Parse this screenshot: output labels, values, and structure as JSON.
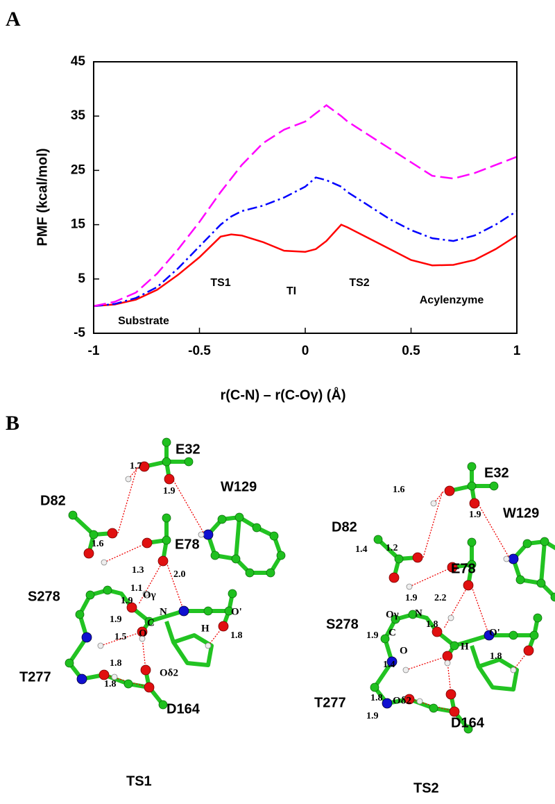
{
  "panel_labels": [
    "A",
    "B"
  ],
  "chart_data": {
    "type": "line",
    "ylabel": "PMF (kcal/mol)",
    "xlabel": "r(C-N) – r(C-Oγ) (Å)",
    "x": [
      -1,
      -0.9,
      -0.8,
      -0.7,
      -0.6,
      -0.5,
      -0.4,
      -0.35,
      -0.3,
      -0.2,
      -0.1,
      0,
      0.05,
      0.1,
      0.17,
      0.2,
      0.3,
      0.4,
      0.5,
      0.6,
      0.7,
      0.8,
      0.9,
      1
    ],
    "series": [
      {
        "color": "#ff0000",
        "line_style": "solid",
        "values": [
          0,
          0.3,
          1.2,
          3,
          5.8,
          9,
          12.8,
          13.2,
          13,
          11.8,
          10.2,
          10,
          10.5,
          12,
          15,
          14.5,
          12.5,
          10.5,
          8.5,
          7.5,
          7.6,
          8.5,
          10.5,
          13
        ]
      },
      {
        "color": "#0000ff",
        "line_style": "dashdot",
        "values": [
          0,
          0.4,
          1.5,
          3.5,
          7,
          11,
          15,
          16.5,
          17.5,
          18.5,
          20,
          22,
          23.7,
          23.2,
          22,
          21,
          18.5,
          16,
          14,
          12.5,
          12,
          13,
          15,
          17.5
        ]
      },
      {
        "color": "#ff00ff",
        "line_style": "dashed",
        "values": [
          0,
          0.8,
          2.5,
          6,
          10.5,
          15.5,
          21,
          23.5,
          26,
          30,
          32.5,
          34,
          35.5,
          37,
          35,
          34,
          31.5,
          29,
          26.5,
          24,
          23.5,
          24.5,
          26,
          27.5
        ]
      }
    ],
    "annotations": [
      "TS1",
      "TI",
      "TS2",
      "Acylenzyme",
      "Substrate"
    ],
    "xlim": [
      -1,
      1
    ],
    "xticks": [
      -1,
      -0.5,
      0,
      0.5,
      1
    ],
    "ylim": [
      -5,
      45
    ],
    "yticks": [
      -5,
      5,
      15,
      25,
      35,
      45
    ],
    "grid": false
  },
  "structures": [
    {
      "title": "TS1",
      "residues": [
        "E32",
        "W129",
        "D82",
        "E78",
        "S278",
        "T277",
        "D164"
      ],
      "atoms": [
        "Oγ",
        "N",
        "C",
        "O",
        "H",
        "O'",
        "Oδ2"
      ],
      "distances": [
        "1.7",
        "1.9",
        "1.6",
        "1.3",
        "2.0",
        "1.1",
        "1.9",
        "1.9",
        "1.5",
        "1.8",
        "1.8",
        "1.8"
      ]
    },
    {
      "title": "TS2",
      "residues": [
        "E32",
        "W129",
        "D82",
        "E78",
        "S278",
        "T277",
        "D164"
      ],
      "atoms": [
        "Oγ",
        "N",
        "C",
        "O",
        "H",
        "O'",
        "Oδ2"
      ],
      "distances": [
        "1.6",
        "1.9",
        "1.4",
        "1.2",
        "1.9",
        "2.2",
        "1.8",
        "1.9",
        "1.4",
        "1.8",
        "1.8",
        "1.9"
      ]
    }
  ]
}
